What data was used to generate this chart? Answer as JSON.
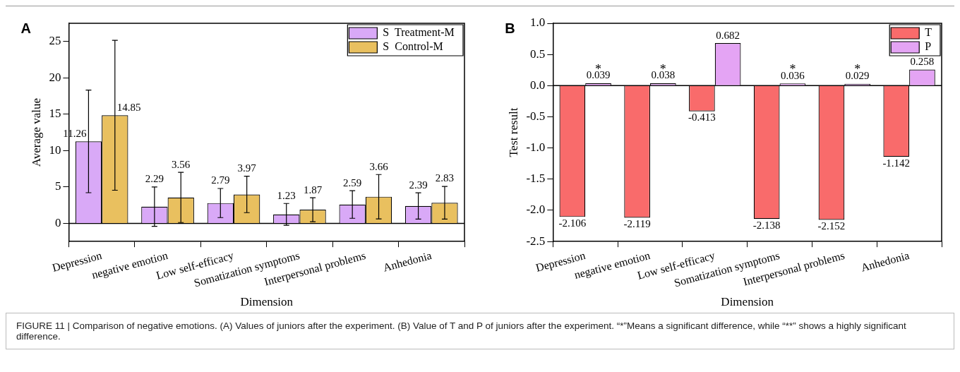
{
  "chart_data": [
    {
      "type": "bar",
      "title": "A",
      "xlabel": "Dimension",
      "ylabel": "Average value",
      "categories": [
        "Depression",
        "negative emotion",
        "Low self-efficacy",
        "Somatization symptoms",
        "Interpersonal problems",
        "Anhedonia"
      ],
      "series": [
        {
          "name": "S  Treatment-M",
          "color": "#d9a9f7",
          "values": [
            11.26,
            2.29,
            2.79,
            1.23,
            2.59,
            2.39
          ],
          "errors": [
            7.05,
            2.7,
            2.0,
            1.5,
            1.9,
            1.8
          ]
        },
        {
          "name": "S  Control-M",
          "color": "#e9c05f",
          "values": [
            14.85,
            3.56,
            3.97,
            1.87,
            3.66,
            2.83
          ],
          "errors": [
            10.3,
            3.45,
            2.5,
            1.65,
            3.05,
            2.25
          ]
        }
      ],
      "ylim": [
        -2.5,
        27.5
      ],
      "yticks": [
        0,
        5,
        10,
        15,
        20,
        25
      ],
      "grid": false,
      "legend": "top right",
      "data_labels": true,
      "ref_lines": [
        {
          "axis": "y",
          "value": 0
        }
      ]
    },
    {
      "type": "bar",
      "title": "B",
      "xlabel": "Dimension",
      "ylabel": "Test result",
      "categories": [
        "Depression",
        "negative emotion",
        "Low self-efficacy",
        "Somatization symptoms",
        "Interpersonal problems",
        "Anhedonia"
      ],
      "series": [
        {
          "name": "T",
          "color": "#f96b6b",
          "values": [
            -2.106,
            -2.119,
            -0.413,
            -2.138,
            -2.152,
            -1.142
          ]
        },
        {
          "name": "P",
          "color": "#e4a4f4",
          "values": [
            0.039,
            0.038,
            0.682,
            0.036,
            0.029,
            0.258
          ]
        }
      ],
      "ylim": [
        -2.5,
        1.0
      ],
      "yticks": [
        {
          "value": -2.5,
          "label": "-2.5"
        },
        {
          "value": -2,
          "label": "-2.0"
        },
        {
          "value": -1.5,
          "label": "-1.5"
        },
        {
          "value": -1,
          "label": "-1.0"
        },
        {
          "value": -0.5,
          "label": "-0.5"
        },
        {
          "value": 0,
          "label": "0.0"
        },
        {
          "value": 0.5,
          "label": "0.5"
        },
        {
          "value": 1,
          "label": "1.0"
        }
      ],
      "grid": false,
      "legend": "top right",
      "data_labels": true,
      "ref_lines": [
        {
          "axis": "y",
          "value": 0
        }
      ],
      "annotations": [
        {
          "text": "*",
          "x": "Depression",
          "y": 0.039
        },
        {
          "text": "*",
          "x": "negative emotion",
          "y": 0.038
        },
        {
          "text": "*",
          "x": "Somatization symptoms",
          "y": 0.036
        },
        {
          "text": "*",
          "x": "Interpersonal problems",
          "y": 0.029
        }
      ]
    },
    {
      "type": "other",
      "annotations": [
        "FIGURE 11 | Comparison of negative emotions. (A) Values of juniors after the experiment. (B) Value of T and P of juniors after the experiment. “*”Means a significant difference, while “**” shows a highly significant difference."
      ]
    }
  ]
}
